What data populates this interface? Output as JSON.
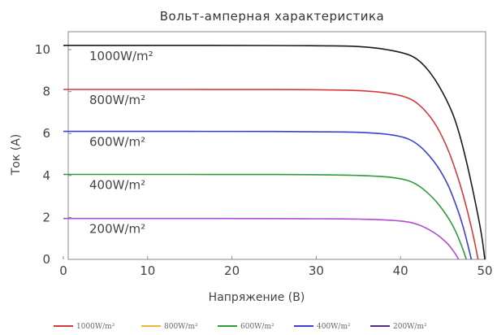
{
  "chart_data": {
    "type": "line",
    "title": "Вольт-амперная характеристика",
    "xlabel": "Напряжение (В)",
    "ylabel": "Ток (А)",
    "xlim": [
      0,
      50
    ],
    "ylim": [
      0,
      11
    ],
    "x_ticks": [
      "0",
      "10",
      "20",
      "30",
      "40",
      "50"
    ],
    "y_ticks": [
      "0",
      "2",
      "4",
      "6",
      "8",
      "10"
    ],
    "grid": false,
    "legend_position": "bottom",
    "series": [
      {
        "name": "1000W/m²",
        "color": "#1a1a1a",
        "curve_label": "1000W/m²",
        "legend_label": "1000W/m²",
        "points": [
          [
            0,
            10.2
          ],
          [
            10,
            10.2
          ],
          [
            20,
            10.2
          ],
          [
            30,
            10.19
          ],
          [
            36,
            10.15
          ],
          [
            40,
            9.9
          ],
          [
            42,
            9.6
          ],
          [
            44,
            8.7
          ],
          [
            46,
            7.2
          ],
          [
            47,
            6.0
          ],
          [
            48,
            4.4
          ],
          [
            49,
            2.5
          ],
          [
            49.7,
            1.0
          ],
          [
            50,
            0
          ]
        ]
      },
      {
        "name": "800W/m²",
        "color": "#d23a3a",
        "curve_label": "800W/m²",
        "legend_label": "800W/m²",
        "points": [
          [
            0,
            8.1
          ],
          [
            10,
            8.1
          ],
          [
            20,
            8.1
          ],
          [
            30,
            8.09
          ],
          [
            36,
            8.05
          ],
          [
            40,
            7.85
          ],
          [
            42,
            7.5
          ],
          [
            44,
            6.6
          ],
          [
            45.5,
            5.4
          ],
          [
            46.5,
            4.3
          ],
          [
            47.5,
            3.0
          ],
          [
            48.5,
            1.4
          ],
          [
            49.2,
            0
          ]
        ]
      },
      {
        "name": "600W/m²",
        "color": "#3c3fd0",
        "curve_label": "600W/m²",
        "legend_label": "600W/m²",
        "points": [
          [
            0,
            6.1
          ],
          [
            10,
            6.1
          ],
          [
            20,
            6.1
          ],
          [
            30,
            6.09
          ],
          [
            36,
            6.06
          ],
          [
            40,
            5.9
          ],
          [
            42,
            5.55
          ],
          [
            44,
            4.7
          ],
          [
            45.5,
            3.7
          ],
          [
            46.5,
            2.7
          ],
          [
            47.5,
            1.5
          ],
          [
            48.4,
            0
          ]
        ]
      },
      {
        "name": "400W/m²",
        "color": "#2f9a3a",
        "curve_label": "400W/m²",
        "legend_label": "400W/m²",
        "points": [
          [
            0,
            4.05
          ],
          [
            10,
            4.05
          ],
          [
            20,
            4.05
          ],
          [
            30,
            4.04
          ],
          [
            36,
            4.0
          ],
          [
            40,
            3.88
          ],
          [
            42,
            3.6
          ],
          [
            44,
            2.9
          ],
          [
            45.5,
            2.1
          ],
          [
            46.5,
            1.4
          ],
          [
            47.4,
            0.5
          ],
          [
            47.8,
            0
          ]
        ]
      },
      {
        "name": "200W/m²",
        "color": "#b34ad6",
        "curve_label": "200W/m²",
        "legend_label": "200W/m²",
        "points": [
          [
            0,
            1.95
          ],
          [
            10,
            1.95
          ],
          [
            20,
            1.95
          ],
          [
            30,
            1.94
          ],
          [
            36,
            1.92
          ],
          [
            40,
            1.85
          ],
          [
            42,
            1.7
          ],
          [
            44,
            1.3
          ],
          [
            45.5,
            0.8
          ],
          [
            46.3,
            0.4
          ],
          [
            46.9,
            0
          ]
        ]
      }
    ],
    "legend_colors": [
      "#d23a3a",
      "#f0b43c",
      "#2f9a3a",
      "#3c3fd0",
      "#5a2a8a"
    ]
  }
}
